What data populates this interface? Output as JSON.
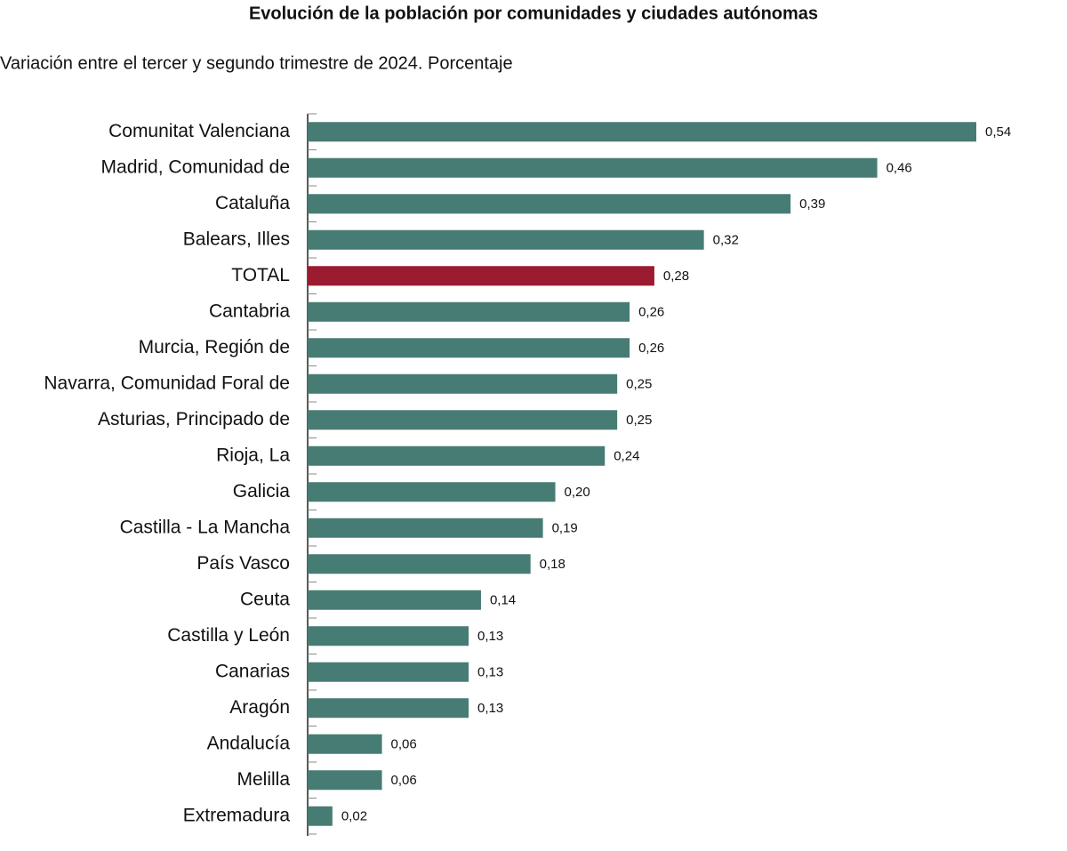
{
  "chart_data": {
    "type": "bar",
    "orientation": "horizontal",
    "title": "Evolución de la población por comunidades y ciudades autónomas",
    "subtitle": "Variación entre el tercer y segundo trimestre de 2024. Porcentaje",
    "categories": [
      "Comunitat Valenciana",
      "Madrid, Comunidad de",
      "Cataluña",
      "Balears, Illes",
      "TOTAL",
      "Cantabria",
      "Murcia, Región de",
      "Navarra, Comunidad Foral de",
      "Asturias, Principado de",
      "Rioja, La",
      "Galicia",
      "Castilla - La Mancha",
      "País Vasco",
      "Ceuta",
      "Castilla y León",
      "Canarias",
      "Aragón",
      "Andalucía",
      "Melilla",
      "Extremadura"
    ],
    "values": [
      0.54,
      0.46,
      0.39,
      0.32,
      0.28,
      0.26,
      0.26,
      0.25,
      0.25,
      0.24,
      0.2,
      0.19,
      0.18,
      0.14,
      0.13,
      0.13,
      0.13,
      0.06,
      0.06,
      0.02
    ],
    "value_labels": [
      "0,54",
      "0,46",
      "0,39",
      "0,32",
      "0,28",
      "0,26",
      "0,26",
      "0,25",
      "0,25",
      "0,24",
      "0,20",
      "0,19",
      "0,18",
      "0,14",
      "0,13",
      "0,13",
      "0,13",
      "0,06",
      "0,06",
      "0,02"
    ],
    "colors": [
      "#477c74",
      "#477c74",
      "#477c74",
      "#477c74",
      "#9b1b30",
      "#477c74",
      "#477c74",
      "#477c74",
      "#477c74",
      "#477c74",
      "#477c74",
      "#477c74",
      "#477c74",
      "#477c74",
      "#477c74",
      "#477c74",
      "#477c74",
      "#477c74",
      "#477c74",
      "#477c74"
    ]
  }
}
